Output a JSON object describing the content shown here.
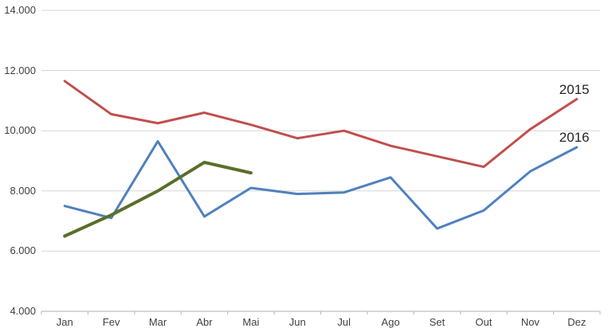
{
  "chart_data": {
    "type": "line",
    "title": "",
    "xlabel": "",
    "ylabel": "",
    "grid": true,
    "legend_position": "end-of-line-labels",
    "categories": [
      "Jan",
      "Fev",
      "Mar",
      "Abr",
      "Mai",
      "Jun",
      "Jul",
      "Ago",
      "Set",
      "Out",
      "Nov",
      "Dez"
    ],
    "y_axis": {
      "min": 4000,
      "max": 14000,
      "step": 2000,
      "tick_values": [
        4000,
        6000,
        8000,
        10000,
        12000,
        14000
      ],
      "tick_labels": [
        "4.000",
        "6.000",
        "8.000",
        "10.000",
        "12.000",
        "14.000"
      ]
    },
    "series": [
      {
        "name": "2015",
        "label": "2015",
        "color": "#C0504D",
        "stroke_width": 3,
        "values": [
          11650,
          10550,
          10250,
          10600,
          10200,
          9750,
          10000,
          9500,
          9150,
          8800,
          10050,
          11050
        ]
      },
      {
        "name": "2016",
        "label": "2016",
        "color": "#4F81BD",
        "stroke_width": 3,
        "values": [
          7500,
          7100,
          9650,
          7150,
          8100,
          7900,
          7950,
          8450,
          6750,
          7350,
          8650,
          9450
        ]
      },
      {
        "name": "unlabeled-partial-series",
        "label": "",
        "color": "#5A6E2A",
        "stroke_width": 4,
        "values": [
          6500,
          7200,
          8000,
          8950,
          8600
        ]
      }
    ],
    "gridline_color": "#D6D6D6",
    "axis_line_color": "#BFBFBF"
  }
}
